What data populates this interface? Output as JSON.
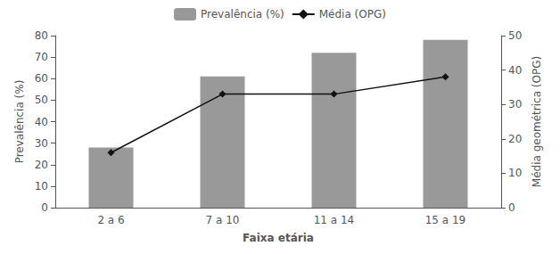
{
  "chart_data": {
    "type": "bar",
    "xlabel": "Faixa etária",
    "ylabel": "Prevalência (%)",
    "y2label": "Média geométrica (OPG)",
    "categories": [
      "2 a 6",
      "7 a 10",
      "11 a 14",
      "15 a 19"
    ],
    "series": [
      {
        "name": "Prevalência (%)",
        "type": "bar",
        "color": "#999999",
        "values": [
          28,
          61,
          72,
          78
        ]
      },
      {
        "name": "Média (OPG)",
        "type": "line",
        "color": "#111111",
        "marker": "diamond",
        "axis": "y2",
        "values": [
          16,
          33,
          33,
          38
        ]
      }
    ],
    "ylim": [
      0,
      80
    ],
    "yticks": [
      0,
      10,
      20,
      30,
      40,
      50,
      60,
      70,
      80
    ],
    "y2lim": [
      0,
      50
    ],
    "y2ticks": [
      0,
      10,
      20,
      30,
      40,
      50
    ],
    "grid": false,
    "legend": "top"
  }
}
